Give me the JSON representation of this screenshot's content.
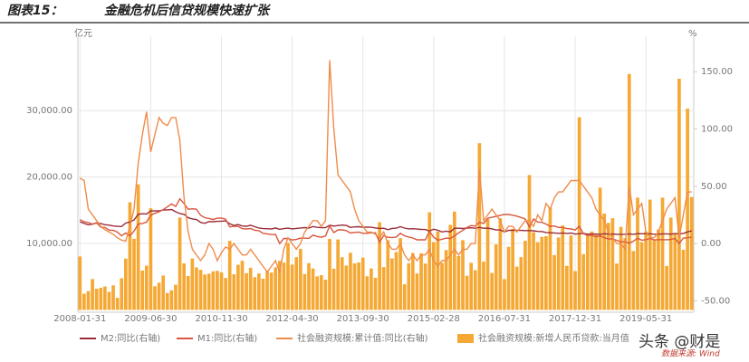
{
  "figure_label": "图表15：",
  "chart_data": {
    "type": "bar",
    "title": "金融危机后信贷规模快速扩张",
    "y_unit": "亿元",
    "y2_unit": "%",
    "source": "数据来源: Wind",
    "watermark": "头条 @财是",
    "categories": [
      "2008-01-31",
      null,
      null,
      null,
      null,
      null,
      null,
      null,
      null,
      null,
      null,
      null,
      null,
      null,
      null,
      null,
      null,
      "2009-06-30",
      null,
      null,
      null,
      null,
      null,
      null,
      null,
      null,
      null,
      null,
      null,
      null,
      null,
      null,
      null,
      null,
      "2010-11-30",
      null,
      null,
      null,
      null,
      null,
      null,
      null,
      null,
      null,
      null,
      null,
      null,
      null,
      null,
      null,
      null,
      "2012-04-30",
      null,
      null,
      null,
      null,
      null,
      null,
      null,
      null,
      null,
      null,
      null,
      null,
      null,
      null,
      null,
      null,
      "2013-09-30",
      null,
      null,
      null,
      null,
      null,
      null,
      null,
      null,
      null,
      null,
      null,
      null,
      null,
      null,
      null,
      null,
      "2015-02-28",
      null,
      null,
      null,
      null,
      null,
      null,
      null,
      null,
      null,
      null,
      null,
      null,
      null,
      null,
      null,
      null,
      "2016-07-31",
      null,
      null,
      null,
      null,
      null,
      null,
      null,
      null,
      null,
      null,
      null,
      null,
      null,
      null,
      null,
      null,
      "2017-12-31",
      null,
      null,
      null,
      null,
      null,
      null,
      null,
      null,
      null,
      null,
      null,
      null,
      null,
      null,
      null,
      null,
      "2019-05-31",
      null,
      null,
      null,
      null,
      null,
      null,
      null,
      null,
      null,
      null,
      null
    ],
    "ylim": [
      -350,
      41200
    ],
    "yticks": [
      {
        "value": 10000,
        "label": "10,000.00"
      },
      {
        "value": 20000,
        "label": "20,000.00"
      },
      {
        "value": 30000,
        "label": "30,000.00"
      }
    ],
    "y2lim": [
      -60,
      181
    ],
    "y2ticks": [
      {
        "value": -50,
        "label": "-50.00"
      },
      {
        "value": 0,
        "label": "0.00"
      },
      {
        "value": 50,
        "label": "50.00"
      },
      {
        "value": 100,
        "label": "100.00"
      },
      {
        "value": 150,
        "label": "150.00"
      }
    ],
    "grid": true,
    "legend": "bottom",
    "series": [
      {
        "name": "M2:同比(右轴)",
        "type": "line",
        "axis": "y2",
        "color": "#9b2d3a",
        "values": [
          18.9,
          17.5,
          16.3,
          16.9,
          18.1,
          17.4,
          16.4,
          16.0,
          15.3,
          15.0,
          14.8,
          17.8,
          18.8,
          20.5,
          25.5,
          26.0,
          25.7,
          28.5,
          28.4,
          28.5,
          29.3,
          29.4,
          29.7,
          27.7,
          26.1,
          25.5,
          22.5,
          21.5,
          21.0,
          18.5,
          17.6,
          19.2,
          19.0,
          19.3,
          19.5,
          19.7,
          17.2,
          15.7,
          16.6,
          15.3,
          15.1,
          15.9,
          14.7,
          13.5,
          13.0,
          12.9,
          12.7,
          13.6,
          12.4,
          13.0,
          13.4,
          12.8,
          13.2,
          13.6,
          13.9,
          13.5,
          14.8,
          14.1,
          13.9,
          13.8,
          15.9,
          15.2,
          15.7,
          16.1,
          15.8,
          14.0,
          14.5,
          14.7,
          14.2,
          14.3,
          14.2,
          13.6,
          13.2,
          13.3,
          12.1,
          13.2,
          13.4,
          14.7,
          13.5,
          12.8,
          12.9,
          12.6,
          12.3,
          12.2,
          10.8,
          12.5,
          11.6,
          10.1,
          10.8,
          10.2,
          13.3,
          13.3,
          13.1,
          13.5,
          13.7,
          13.3,
          14.0,
          13.3,
          13.4,
          12.8,
          11.8,
          11.8,
          10.2,
          11.4,
          11.5,
          11.6,
          11.4,
          11.3,
          11.3,
          11.1,
          10.6,
          10.5,
          9.6,
          9.4,
          9.2,
          8.9,
          9.2,
          8.8,
          9.1,
          8.2,
          8.6,
          8.8,
          8.2,
          8.3,
          8.3,
          8.0,
          8.5,
          8.2,
          8.3,
          8.0,
          8.0,
          8.1,
          8.4,
          8.0,
          8.6,
          8.5,
          8.5,
          8.5,
          8.1,
          8.2,
          8.4,
          8.4,
          8.2,
          8.7,
          8.4,
          8.8,
          10.1,
          11.1
        ]
      },
      {
        "name": "M1:同比(右轴)",
        "type": "line",
        "axis": "y2",
        "color": "#d9573f",
        "values": [
          20.8,
          18.9,
          18.3,
          16.9,
          18.1,
          14.2,
          14.0,
          11.7,
          11.5,
          9.9,
          6.8,
          9.1,
          6.7,
          10.9,
          17.0,
          17.5,
          18.7,
          24.8,
          26.4,
          27.7,
          29.5,
          32.0,
          34.6,
          32.4,
          39.0,
          34.9,
          29.9,
          30.3,
          29.9,
          24.6,
          22.6,
          21.9,
          20.9,
          22.1,
          22.2,
          21.2,
          14.5,
          15.0,
          15.0,
          12.9,
          12.7,
          13.1,
          11.6,
          11.2,
          8.9,
          8.4,
          7.8,
          7.9,
          -0.1,
          4.4,
          4.4,
          3.1,
          3.5,
          4.7,
          4.6,
          4.5,
          7.3,
          6.1,
          5.5,
          6.5,
          15.3,
          9.5,
          11.9,
          11.9,
          11.3,
          9.1,
          9.7,
          9.9,
          8.9,
          8.9,
          9.4,
          9.3,
          1.2,
          6.9,
          5.4,
          5.3,
          5.7,
          8.9,
          6.7,
          5.7,
          4.8,
          3.2,
          3.2,
          3.2,
          10.6,
          5.6,
          2.9,
          3.7,
          4.7,
          4.3,
          6.6,
          9.3,
          11.4,
          14.0,
          15.7,
          15.2,
          18.6,
          17.4,
          22.1,
          22.9,
          23.7,
          24.6,
          25.4,
          25.3,
          24.7,
          23.9,
          22.7,
          21.4,
          14.5,
          21.4,
          18.8,
          18.5,
          17.0,
          15.0,
          15.3,
          14.0,
          14.0,
          13.0,
          12.7,
          11.8,
          15.0,
          8.5,
          7.1,
          7.2,
          6.0,
          6.6,
          5.1,
          3.9,
          4.0,
          2.7,
          1.5,
          1.5,
          0.4,
          2.0,
          4.6,
          2.9,
          3.4,
          4.4,
          3.1,
          3.4,
          3.4,
          3.3,
          3.5,
          4.4,
          0.0,
          4.8,
          5.0,
          5.5
        ]
      },
      {
        "name": "社会融资规模:累计值:同比(右轴)",
        "type": "line",
        "axis": "y2",
        "color": "#ef8c4c",
        "values": [
          57,
          55,
          30,
          25,
          20,
          15,
          12,
          10,
          8,
          5,
          3,
          2,
          15,
          30,
          70,
          95,
          115,
          80,
          95,
          110,
          105,
          103,
          110,
          110,
          90,
          40,
          10,
          -5,
          -10,
          -15,
          -10,
          0,
          -5,
          -15,
          -8,
          -3,
          -5,
          0,
          -5,
          -10,
          -10,
          -5,
          -10,
          -15,
          -20,
          -25,
          -20,
          -15,
          -25,
          -5,
          5,
          0,
          -5,
          0,
          10,
          15,
          20,
          20,
          15,
          20,
          160,
          100,
          60,
          55,
          50,
          45,
          30,
          20,
          15,
          10,
          10,
          8,
          5,
          10,
          0,
          -5,
          -5,
          0,
          -10,
          -15,
          -10,
          -15,
          -10,
          -10,
          -5,
          -15,
          -20,
          -15,
          -15,
          -10,
          -5,
          -10,
          -5,
          -5,
          0,
          0,
          65,
          20,
          25,
          30,
          25,
          20,
          10,
          15,
          15,
          10,
          15,
          20,
          20,
          15,
          25,
          20,
          35,
          30,
          40,
          45,
          45,
          50,
          55,
          55,
          55,
          50,
          45,
          40,
          30,
          25,
          20,
          10,
          5,
          0,
          0,
          -5,
          50,
          25,
          30,
          35,
          10,
          5,
          5,
          10,
          20,
          30,
          35,
          40,
          5,
          25,
          45,
          45
        ]
      },
      {
        "name": "社会融资规模:新增人民币贷款:当月值",
        "type": "bar",
        "axis": "y",
        "color": "#f5a833",
        "values": [
          8037,
          2443,
          2834,
          4645,
          3185,
          3318,
          3534,
          2715,
          3702,
          1814,
          4769,
          7718,
          16200,
          10700,
          18900,
          5918,
          6645,
          15300,
          3559,
          4104,
          5167,
          2530,
          2949,
          3798,
          13900,
          7001,
          5107,
          7740,
          6394,
          6034,
          5328,
          5452,
          5800,
          5877,
          5640,
          4807,
          10400,
          5356,
          6794,
          7396,
          5516,
          6339,
          4925,
          5485,
          4700,
          5868,
          5622,
          6405,
          7381,
          7107,
          10100,
          6818,
          7932,
          9198,
          5401,
          7039,
          6232,
          5053,
          5229,
          4543,
          10700,
          6200,
          10600,
          7929,
          6674,
          8605,
          6999,
          7132,
          7870,
          5061,
          6246,
          4825,
          13200,
          6445,
          10500,
          7747,
          8708,
          10800,
          3852,
          7025,
          8572,
          5483,
          8527,
          6973,
          14700,
          10200,
          11800,
          7079,
          9008,
          12800,
          14800,
          8096,
          10500,
          5136,
          7089,
          5978,
          25100,
          7266,
          13700,
          5556,
          9855,
          13800,
          4636,
          9487,
          12200,
          6513,
          7946,
          10400,
          20300,
          11700,
          10200,
          11000,
          11100,
          15400,
          8255,
          10900,
          12700,
          6632,
          11200,
          5844,
          29000,
          8393,
          11200,
          11800,
          11500,
          18400,
          14500,
          13100,
          13800,
          6970,
          12500,
          10800,
          35500,
          8858,
          16900,
          10200,
          11800,
          16600,
          10600,
          12100,
          16900,
          6613,
          13900,
          11400,
          34800,
          9057,
          30300,
          17000
        ]
      }
    ]
  }
}
